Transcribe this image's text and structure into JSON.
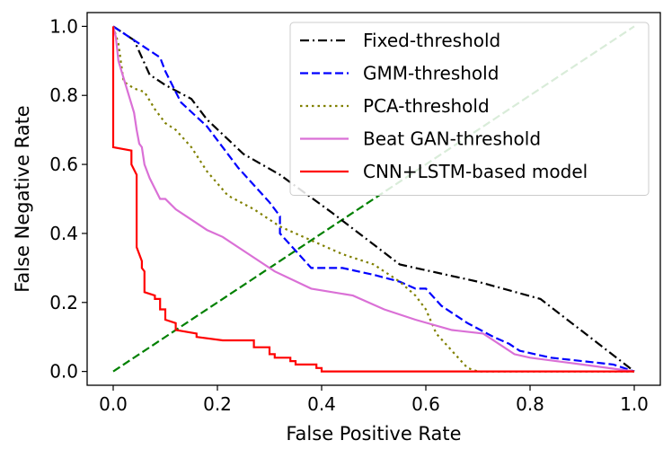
{
  "chart_data": {
    "type": "line",
    "title": "",
    "xlabel": "False Positive Rate",
    "ylabel": "False Negative Rate",
    "xlim": [
      -0.05,
      1.05
    ],
    "ylim": [
      -0.04,
      1.04
    ],
    "xticks": [
      0.0,
      0.2,
      0.4,
      0.6,
      0.8,
      1.0
    ],
    "yticks": [
      0.0,
      0.2,
      0.4,
      0.6,
      0.8,
      1.0
    ],
    "xtick_labels": [
      "0.0",
      "0.2",
      "0.4",
      "0.6",
      "0.8",
      "1.0"
    ],
    "ytick_labels": [
      "0.0",
      "0.2",
      "0.4",
      "0.6",
      "0.8",
      "1.0"
    ],
    "legend_position": "top-right",
    "diagonal": {
      "color": "#008000",
      "dash": "dashed",
      "x": [
        0,
        1
      ],
      "y": [
        0,
        1
      ]
    },
    "series": [
      {
        "name": "Fixed-threshold",
        "color": "#000000",
        "dash": "dashdot",
        "x": [
          0.0,
          0.01,
          0.04,
          0.07,
          0.1,
          0.15,
          0.18,
          0.25,
          0.32,
          0.42,
          0.55,
          0.7,
          0.82,
          1.0
        ],
        "y": [
          1.0,
          0.99,
          0.96,
          0.86,
          0.83,
          0.79,
          0.73,
          0.63,
          0.57,
          0.46,
          0.31,
          0.26,
          0.21,
          0.0
        ]
      },
      {
        "name": "GMM-threshold",
        "color": "#0000ff",
        "dash": "dashed",
        "x": [
          0.0,
          0.02,
          0.05,
          0.09,
          0.1,
          0.13,
          0.18,
          0.24,
          0.3,
          0.32,
          0.32,
          0.38,
          0.44,
          0.5,
          0.55,
          0.58,
          0.6,
          0.63,
          0.68,
          0.73,
          0.76,
          0.78,
          0.84,
          0.9,
          0.96,
          1.0
        ],
        "y": [
          1.0,
          0.98,
          0.95,
          0.91,
          0.87,
          0.78,
          0.71,
          0.59,
          0.49,
          0.45,
          0.4,
          0.3,
          0.3,
          0.28,
          0.26,
          0.24,
          0.24,
          0.19,
          0.14,
          0.1,
          0.08,
          0.06,
          0.04,
          0.03,
          0.02,
          0.0
        ]
      },
      {
        "name": "PCA-threshold",
        "color": "#808000",
        "dash": "dotted",
        "x": [
          0.0,
          0.01,
          0.02,
          0.04,
          0.06,
          0.08,
          0.1,
          0.12,
          0.15,
          0.18,
          0.22,
          0.27,
          0.32,
          0.38,
          0.44,
          0.5,
          0.55,
          0.58,
          0.6,
          0.62,
          0.65,
          0.68,
          0.7,
          0.74,
          1.0
        ],
        "y": [
          1.0,
          0.95,
          0.84,
          0.82,
          0.81,
          0.76,
          0.72,
          0.7,
          0.65,
          0.58,
          0.51,
          0.47,
          0.42,
          0.38,
          0.34,
          0.31,
          0.26,
          0.22,
          0.18,
          0.11,
          0.06,
          0.01,
          0.0,
          0.0,
          0.0
        ]
      },
      {
        "name": "Beat GAN-threshold",
        "color": "#da70d6",
        "dash": "solid",
        "x": [
          0.0,
          0.005,
          0.01,
          0.02,
          0.03,
          0.04,
          0.045,
          0.05,
          0.055,
          0.06,
          0.07,
          0.08,
          0.09,
          0.1,
          0.12,
          0.15,
          0.18,
          0.21,
          0.26,
          0.31,
          0.38,
          0.46,
          0.52,
          0.58,
          0.65,
          0.71,
          0.75,
          0.77,
          0.8,
          0.9,
          1.0
        ],
        "y": [
          1.0,
          0.97,
          0.9,
          0.85,
          0.8,
          0.75,
          0.7,
          0.66,
          0.65,
          0.6,
          0.56,
          0.53,
          0.5,
          0.5,
          0.47,
          0.44,
          0.41,
          0.39,
          0.34,
          0.29,
          0.24,
          0.22,
          0.18,
          0.15,
          0.12,
          0.11,
          0.07,
          0.05,
          0.04,
          0.02,
          0.0
        ]
      },
      {
        "name": "CNN+LSTM-based model",
        "color": "#ff0000",
        "dash": "solid",
        "x": [
          0.0,
          0.0,
          0.035,
          0.035,
          0.045,
          0.045,
          0.055,
          0.055,
          0.06,
          0.06,
          0.08,
          0.08,
          0.09,
          0.09,
          0.1,
          0.1,
          0.12,
          0.12,
          0.16,
          0.16,
          0.21,
          0.21,
          0.27,
          0.27,
          0.3,
          0.3,
          0.31,
          0.31,
          0.34,
          0.34,
          0.35,
          0.35,
          0.37,
          0.37,
          0.39,
          0.39,
          0.4,
          0.4,
          1.0
        ],
        "y": [
          1.0,
          0.65,
          0.64,
          0.6,
          0.57,
          0.36,
          0.32,
          0.3,
          0.29,
          0.23,
          0.22,
          0.21,
          0.21,
          0.18,
          0.18,
          0.15,
          0.14,
          0.12,
          0.11,
          0.1,
          0.09,
          0.09,
          0.09,
          0.07,
          0.07,
          0.05,
          0.05,
          0.04,
          0.04,
          0.03,
          0.03,
          0.02,
          0.02,
          0.02,
          0.02,
          0.01,
          0.01,
          0.0,
          0.0
        ]
      }
    ]
  }
}
